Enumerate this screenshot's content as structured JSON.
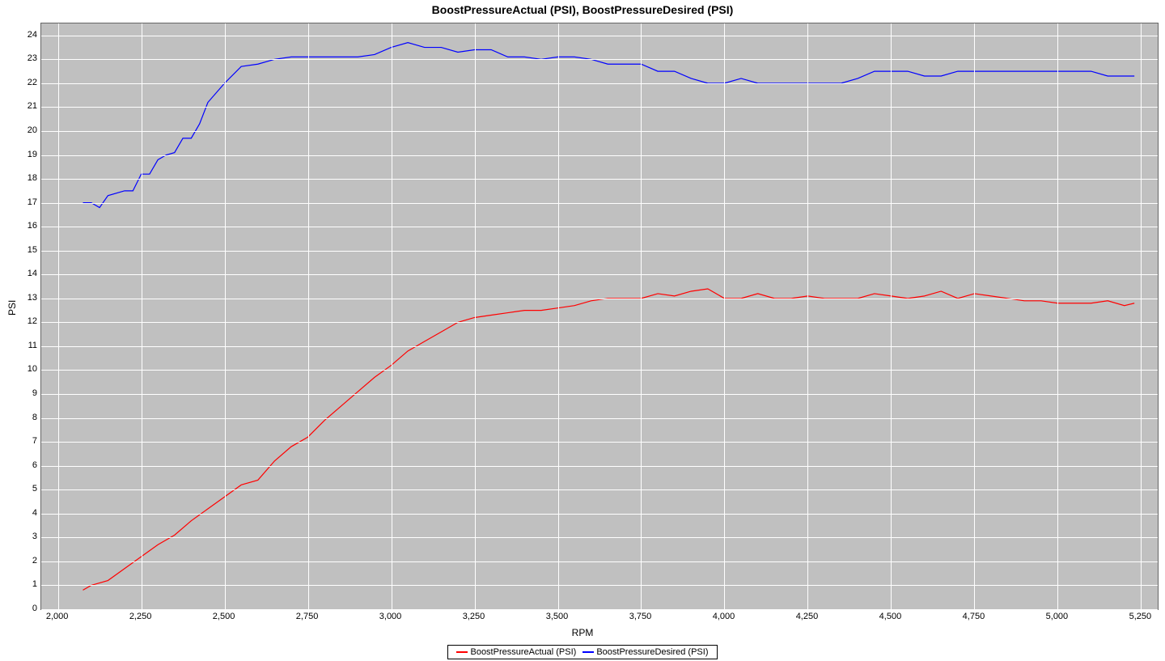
{
  "chart": {
    "type": "line",
    "title": "BoostPressureActual (PSI), BoostPressureDesired (PSI)",
    "xlabel": "RPM",
    "ylabel": "PSI",
    "background_color": "#c0c0c0",
    "grid_color": "#ffffff",
    "plot_border_color": "#666666",
    "title_fontsize": 14,
    "label_fontsize": 12,
    "tick_fontsize": 11,
    "xlim": [
      1950,
      5300
    ],
    "ylim": [
      0,
      24.5
    ],
    "xtick_start": 2000,
    "xtick_step": 250,
    "xtick_end": 5250,
    "ytick_start": 0,
    "ytick_step": 1,
    "ytick_end": 24,
    "xtick_format": "thousands_comma",
    "line_width": 1.2,
    "series": [
      {
        "name": "BoostPressureActual (PSI)",
        "color": "#ff0000",
        "x": [
          2075,
          2100,
          2150,
          2200,
          2250,
          2300,
          2350,
          2400,
          2450,
          2500,
          2550,
          2600,
          2650,
          2700,
          2750,
          2800,
          2850,
          2900,
          2950,
          3000,
          3050,
          3100,
          3150,
          3200,
          3250,
          3300,
          3350,
          3400,
          3450,
          3500,
          3550,
          3600,
          3650,
          3700,
          3750,
          3800,
          3850,
          3900,
          3950,
          4000,
          4050,
          4100,
          4150,
          4200,
          4250,
          4300,
          4350,
          4400,
          4450,
          4500,
          4550,
          4600,
          4650,
          4700,
          4750,
          4800,
          4850,
          4900,
          4950,
          5000,
          5050,
          5100,
          5150,
          5200,
          5230
        ],
        "y": [
          0.8,
          1.0,
          1.2,
          1.7,
          2.2,
          2.7,
          3.1,
          3.7,
          4.2,
          4.7,
          5.2,
          5.4,
          6.2,
          6.8,
          7.2,
          7.9,
          8.5,
          9.1,
          9.7,
          10.2,
          10.8,
          11.2,
          11.6,
          12.0,
          12.2,
          12.3,
          12.4,
          12.5,
          12.5,
          12.6,
          12.7,
          12.9,
          13.0,
          13.0,
          13.0,
          13.2,
          13.1,
          13.3,
          13.4,
          13.0,
          13.0,
          13.2,
          13.0,
          13.0,
          13.1,
          13.0,
          13.0,
          13.0,
          13.2,
          13.1,
          13.0,
          13.1,
          13.3,
          13.0,
          13.2,
          13.1,
          13.0,
          12.9,
          12.9,
          12.8,
          12.8,
          12.8,
          12.9,
          12.7,
          12.8
        ]
      },
      {
        "name": "BoostPressureDesired (PSI)",
        "color": "#0000ff",
        "x": [
          2075,
          2100,
          2125,
          2150,
          2200,
          2225,
          2250,
          2275,
          2300,
          2325,
          2350,
          2375,
          2400,
          2425,
          2450,
          2500,
          2550,
          2600,
          2650,
          2700,
          2750,
          2800,
          2850,
          2900,
          2950,
          3000,
          3050,
          3100,
          3150,
          3200,
          3250,
          3300,
          3350,
          3400,
          3450,
          3500,
          3550,
          3600,
          3650,
          3700,
          3750,
          3800,
          3850,
          3900,
          3950,
          4000,
          4050,
          4100,
          4150,
          4200,
          4250,
          4300,
          4350,
          4400,
          4450,
          4500,
          4550,
          4600,
          4650,
          4700,
          4750,
          4800,
          4850,
          4900,
          4950,
          5000,
          5050,
          5100,
          5150,
          5200,
          5230
        ],
        "y": [
          17.0,
          17.0,
          16.8,
          17.3,
          17.5,
          17.5,
          18.2,
          18.2,
          18.8,
          19.0,
          19.1,
          19.7,
          19.7,
          20.3,
          21.2,
          22.0,
          22.7,
          22.8,
          23.0,
          23.1,
          23.1,
          23.1,
          23.1,
          23.1,
          23.2,
          23.5,
          23.7,
          23.5,
          23.5,
          23.3,
          23.4,
          23.4,
          23.1,
          23.1,
          23.0,
          23.1,
          23.1,
          23.0,
          22.8,
          22.8,
          22.8,
          22.5,
          22.5,
          22.2,
          22.0,
          22.0,
          22.2,
          22.0,
          22.0,
          22.0,
          22.0,
          22.0,
          22.0,
          22.2,
          22.5,
          22.5,
          22.5,
          22.3,
          22.3,
          22.5,
          22.5,
          22.5,
          22.5,
          22.5,
          22.5,
          22.5,
          22.5,
          22.5,
          22.3,
          22.3,
          22.3
        ]
      }
    ],
    "legend": {
      "position": "bottom",
      "border_color": "#000000",
      "background": "#ffffff",
      "fontsize": 11
    }
  }
}
